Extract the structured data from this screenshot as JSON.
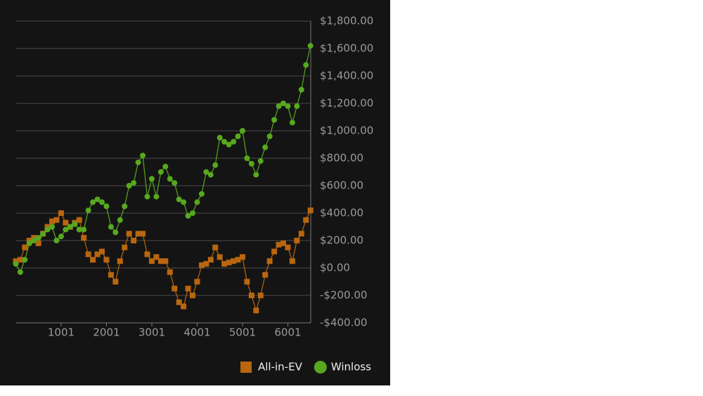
{
  "chart_data": {
    "type": "line",
    "x": [
      1,
      100,
      200,
      300,
      400,
      500,
      600,
      700,
      800,
      900,
      1000,
      1100,
      1200,
      1300,
      1400,
      1500,
      1600,
      1700,
      1800,
      1900,
      2000,
      2100,
      2200,
      2300,
      2400,
      2500,
      2600,
      2700,
      2800,
      2900,
      3000,
      3100,
      3200,
      3300,
      3400,
      3500,
      3600,
      3700,
      3800,
      3900,
      4000,
      4100,
      4200,
      4300,
      4400,
      4500,
      4600,
      4700,
      4800,
      4900,
      5000,
      5100,
      5200,
      5300,
      5400,
      5500,
      5600,
      5700,
      5800,
      5900,
      6000,
      6100,
      6200,
      6300,
      6400,
      6500
    ],
    "series": [
      {
        "name": "All-in-EV",
        "color": "#b8660f",
        "marker": "square",
        "values": [
          50,
          60,
          150,
          200,
          220,
          180,
          250,
          300,
          340,
          350,
          400,
          330,
          300,
          330,
          350,
          220,
          100,
          60,
          100,
          120,
          60,
          -50,
          -100,
          50,
          150,
          250,
          200,
          250,
          250,
          100,
          50,
          80,
          50,
          50,
          -30,
          -150,
          -250,
          -280,
          -150,
          -200,
          -100,
          20,
          30,
          60,
          150,
          80,
          30,
          40,
          50,
          60,
          80,
          -100,
          -200,
          -310,
          -200,
          -50,
          50,
          120,
          170,
          180,
          150,
          50,
          200,
          250,
          350,
          420
        ]
      },
      {
        "name": "Winloss",
        "color": "#57a81f",
        "marker": "circle",
        "values": [
          30,
          -30,
          60,
          180,
          200,
          220,
          250,
          280,
          300,
          200,
          230,
          280,
          300,
          320,
          280,
          280,
          420,
          480,
          500,
          480,
          450,
          300,
          260,
          350,
          450,
          600,
          620,
          770,
          820,
          520,
          650,
          520,
          700,
          740,
          650,
          620,
          500,
          480,
          380,
          400,
          480,
          540,
          700,
          680,
          750,
          950,
          920,
          900,
          920,
          960,
          1000,
          800,
          760,
          680,
          780,
          880,
          960,
          1080,
          1180,
          1200,
          1180,
          1060,
          1180,
          1300,
          1480,
          1620
        ]
      }
    ],
    "xlim": [
      1,
      6505
    ],
    "xticks": [
      1001,
      2001,
      3001,
      4001,
      5001,
      6001
    ],
    "ylim": [
      -400,
      1800
    ],
    "yticks": [
      {
        "value": -400,
        "label": "-$400.00"
      },
      {
        "value": -200,
        "label": "-$200.00"
      },
      {
        "value": 0,
        "label": "$0.00"
      },
      {
        "value": 200,
        "label": "$200.00"
      },
      {
        "value": 400,
        "label": "$400.00"
      },
      {
        "value": 600,
        "label": "$600.00"
      },
      {
        "value": 800,
        "label": "$800.00"
      },
      {
        "value": 1000,
        "label": "$1,000.00"
      },
      {
        "value": 1200,
        "label": "$1,200.00"
      },
      {
        "value": 1400,
        "label": "$1,400.00"
      },
      {
        "value": 1600,
        "label": "$1,600.00"
      },
      {
        "value": 1800,
        "label": "$1,800.00"
      }
    ],
    "grid": true,
    "legend": "bottom-right"
  }
}
